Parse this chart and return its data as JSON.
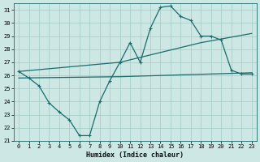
{
  "xlabel": "Humidex (Indice chaleur)",
  "xlim": [
    -0.5,
    23.5
  ],
  "ylim": [
    21,
    31.5
  ],
  "yticks": [
    21,
    22,
    23,
    24,
    25,
    26,
    27,
    28,
    29,
    30,
    31
  ],
  "xticks": [
    0,
    1,
    2,
    3,
    4,
    5,
    6,
    7,
    8,
    9,
    10,
    11,
    12,
    13,
    14,
    15,
    16,
    17,
    18,
    19,
    20,
    21,
    22,
    23
  ],
  "bg_color": "#cde8e4",
  "line_color": "#1a6b6b",
  "grid_color": "#a8cec8",
  "line1_x": [
    0,
    1,
    2,
    3,
    4,
    5,
    6,
    7,
    8,
    9,
    10,
    11,
    12,
    13,
    14,
    15,
    16,
    17,
    18,
    19,
    20,
    21,
    22,
    23
  ],
  "line1_y": [
    26.3,
    25.8,
    25.2,
    23.9,
    23.2,
    22.6,
    21.4,
    21.4,
    24.0,
    25.6,
    27.0,
    28.5,
    27.0,
    29.6,
    31.2,
    31.3,
    30.5,
    30.2,
    29.0,
    29.0,
    28.7,
    26.4,
    26.1,
    26.1
  ],
  "line2_x": [
    0,
    10,
    18,
    23
  ],
  "line2_y": [
    26.3,
    27.0,
    28.5,
    29.2
  ],
  "line3_x": [
    0,
    10,
    23
  ],
  "line3_y": [
    25.8,
    25.9,
    26.2
  ]
}
